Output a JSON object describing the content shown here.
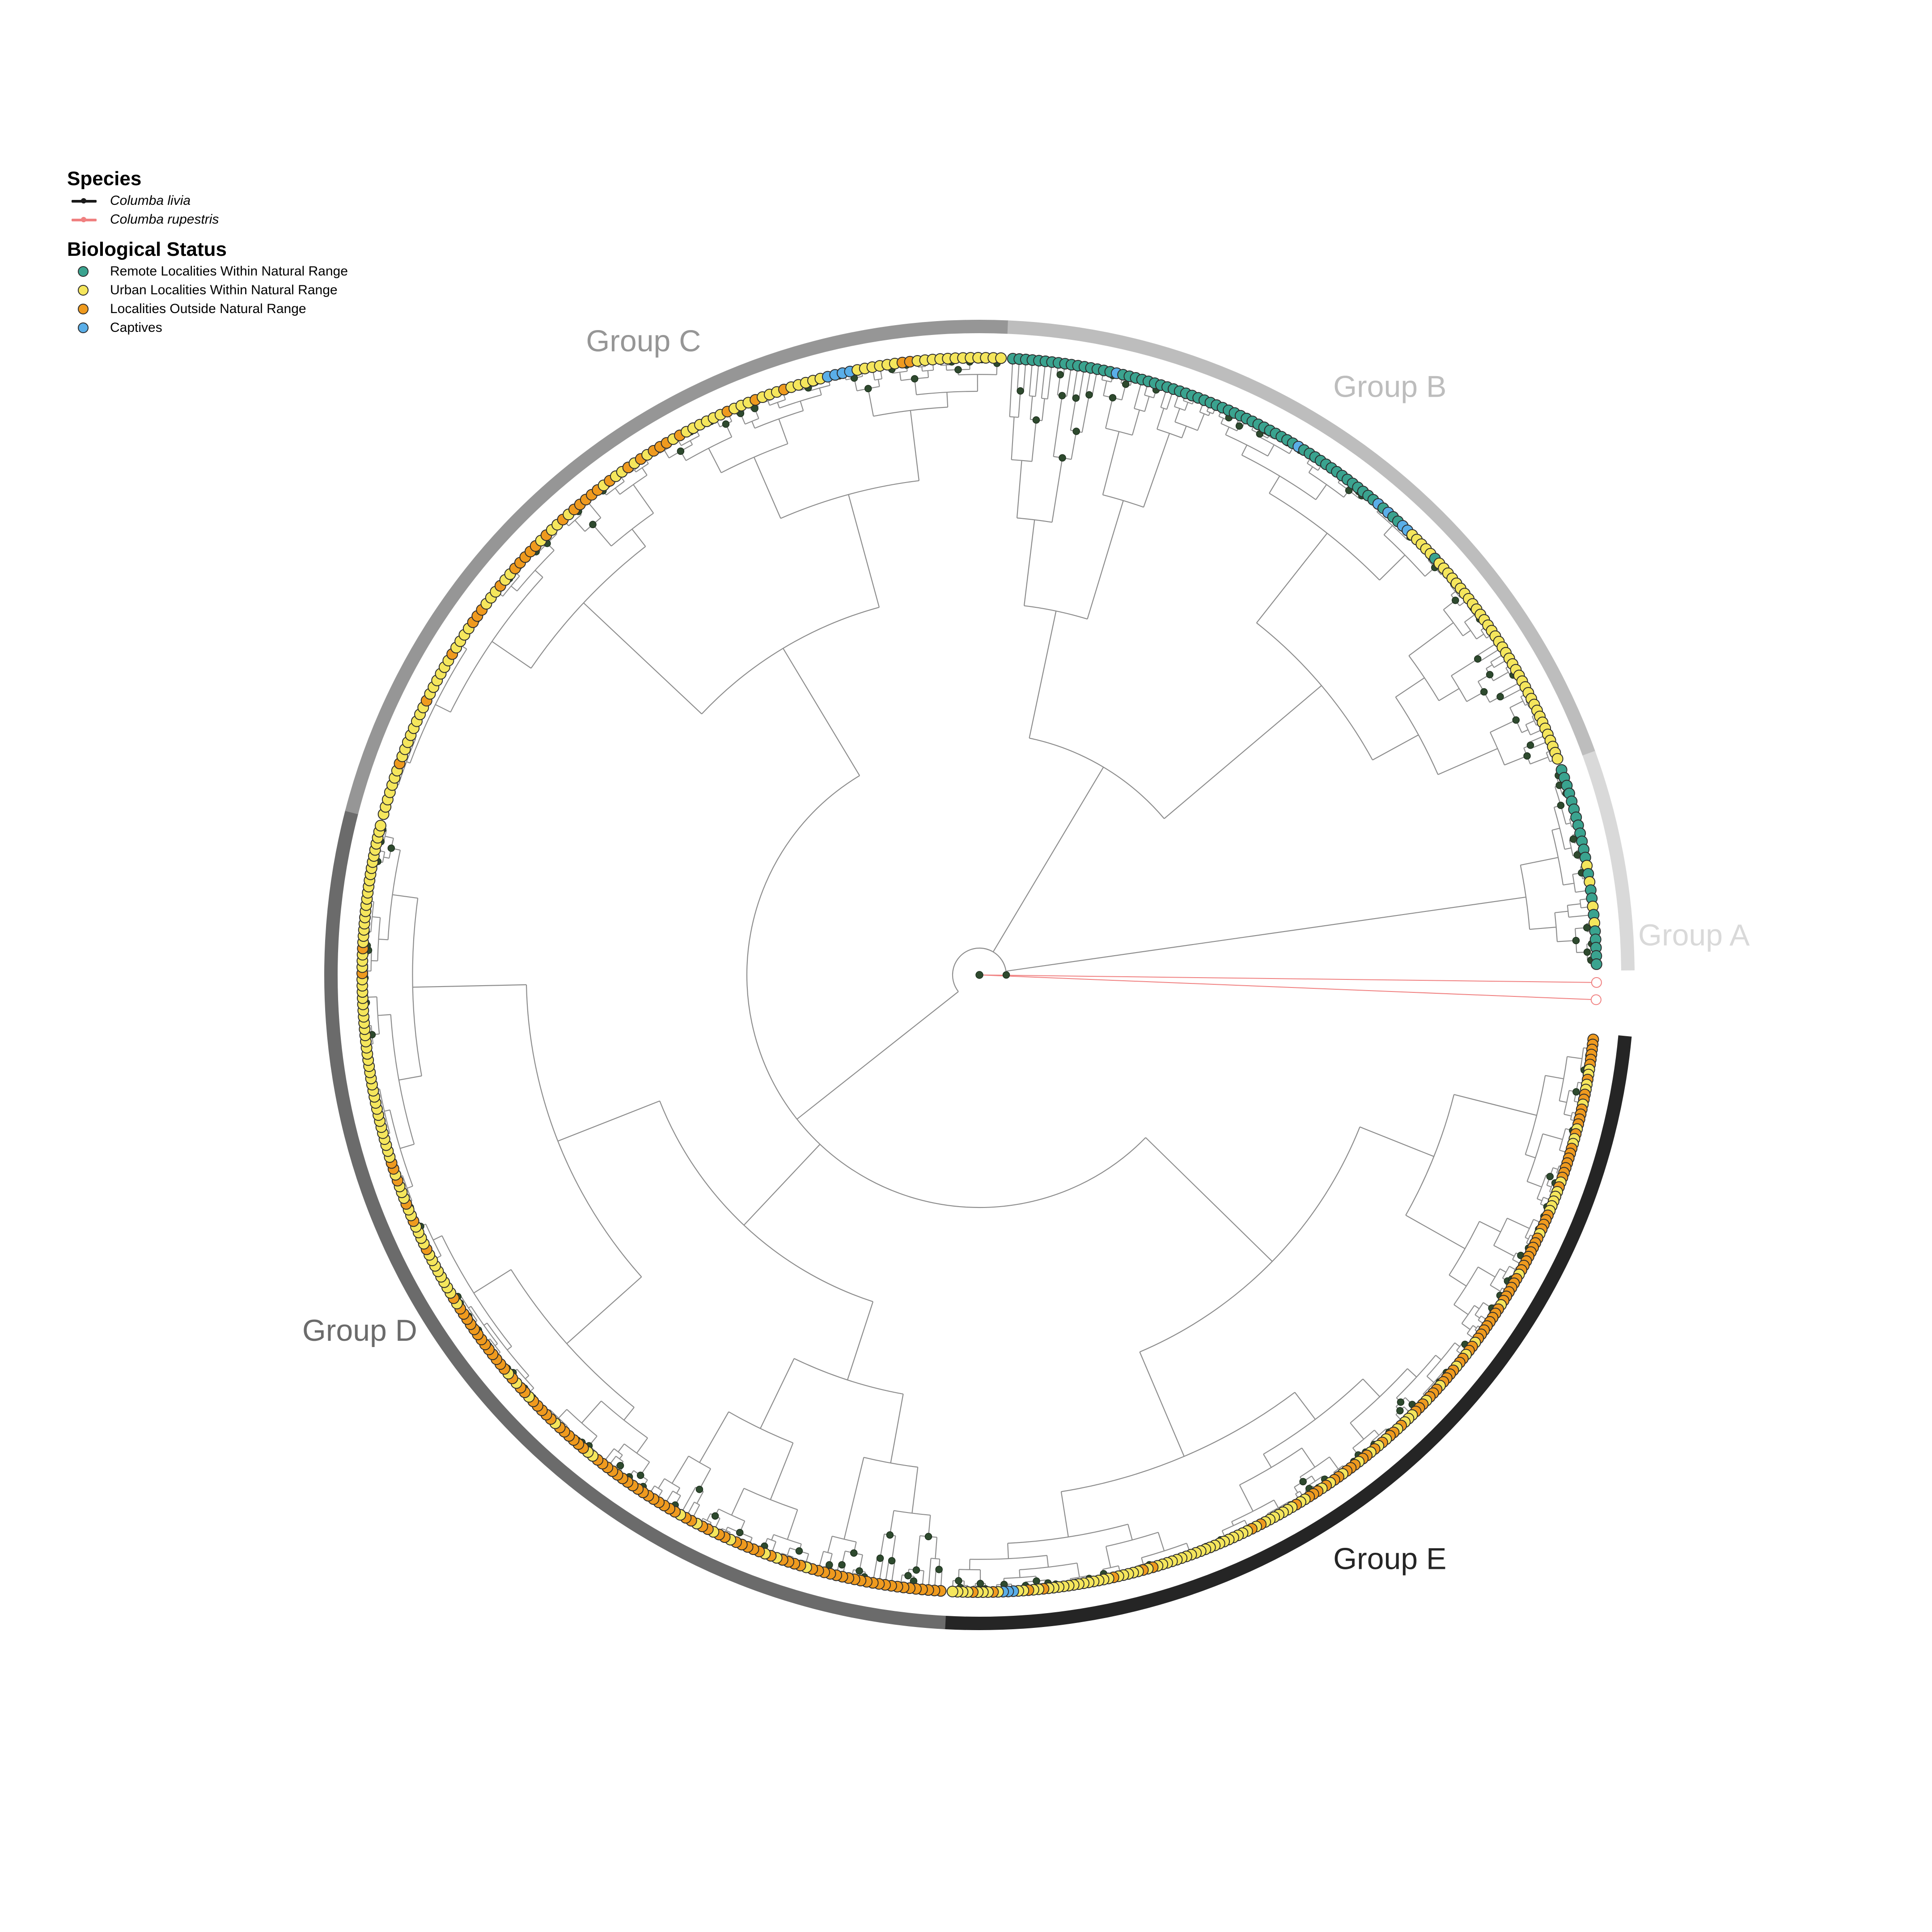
{
  "legend": {
    "species_title": "Species",
    "species": [
      {
        "name": "Columba livia",
        "color": "#1a1a1a"
      },
      {
        "name": "Columba rupestris",
        "color": "#f08080"
      }
    ],
    "status_title": "Biological Status",
    "statuses": [
      {
        "name": "Remote Localities Within Natural Range",
        "color": "#3aa38f"
      },
      {
        "name": "Urban Localities Within Natural Range",
        "color": "#f5e65c"
      },
      {
        "name": "Localities Outside Natural Range",
        "color": "#ef9a1e"
      },
      {
        "name": "Captives",
        "color": "#5aaee8"
      }
    ]
  },
  "groups": [
    {
      "label": "Group A",
      "color": "#d9d9d9",
      "tips": 25
    },
    {
      "label": "Group B",
      "color": "#bdbdbd",
      "tips": 110
    },
    {
      "label": "Group C",
      "color": "#969696",
      "tips": 110
    },
    {
      "label": "Group D",
      "color": "#6b6b6b",
      "tips": 175
    },
    {
      "label": "Group E",
      "color": "#252525",
      "tips": 185
    }
  ],
  "colors": {
    "branch": "#8c8c8c",
    "outgroup_branch": "#f08080",
    "node_support": "#2e4a2e",
    "tip_outline": "#2d2d2d"
  }
}
